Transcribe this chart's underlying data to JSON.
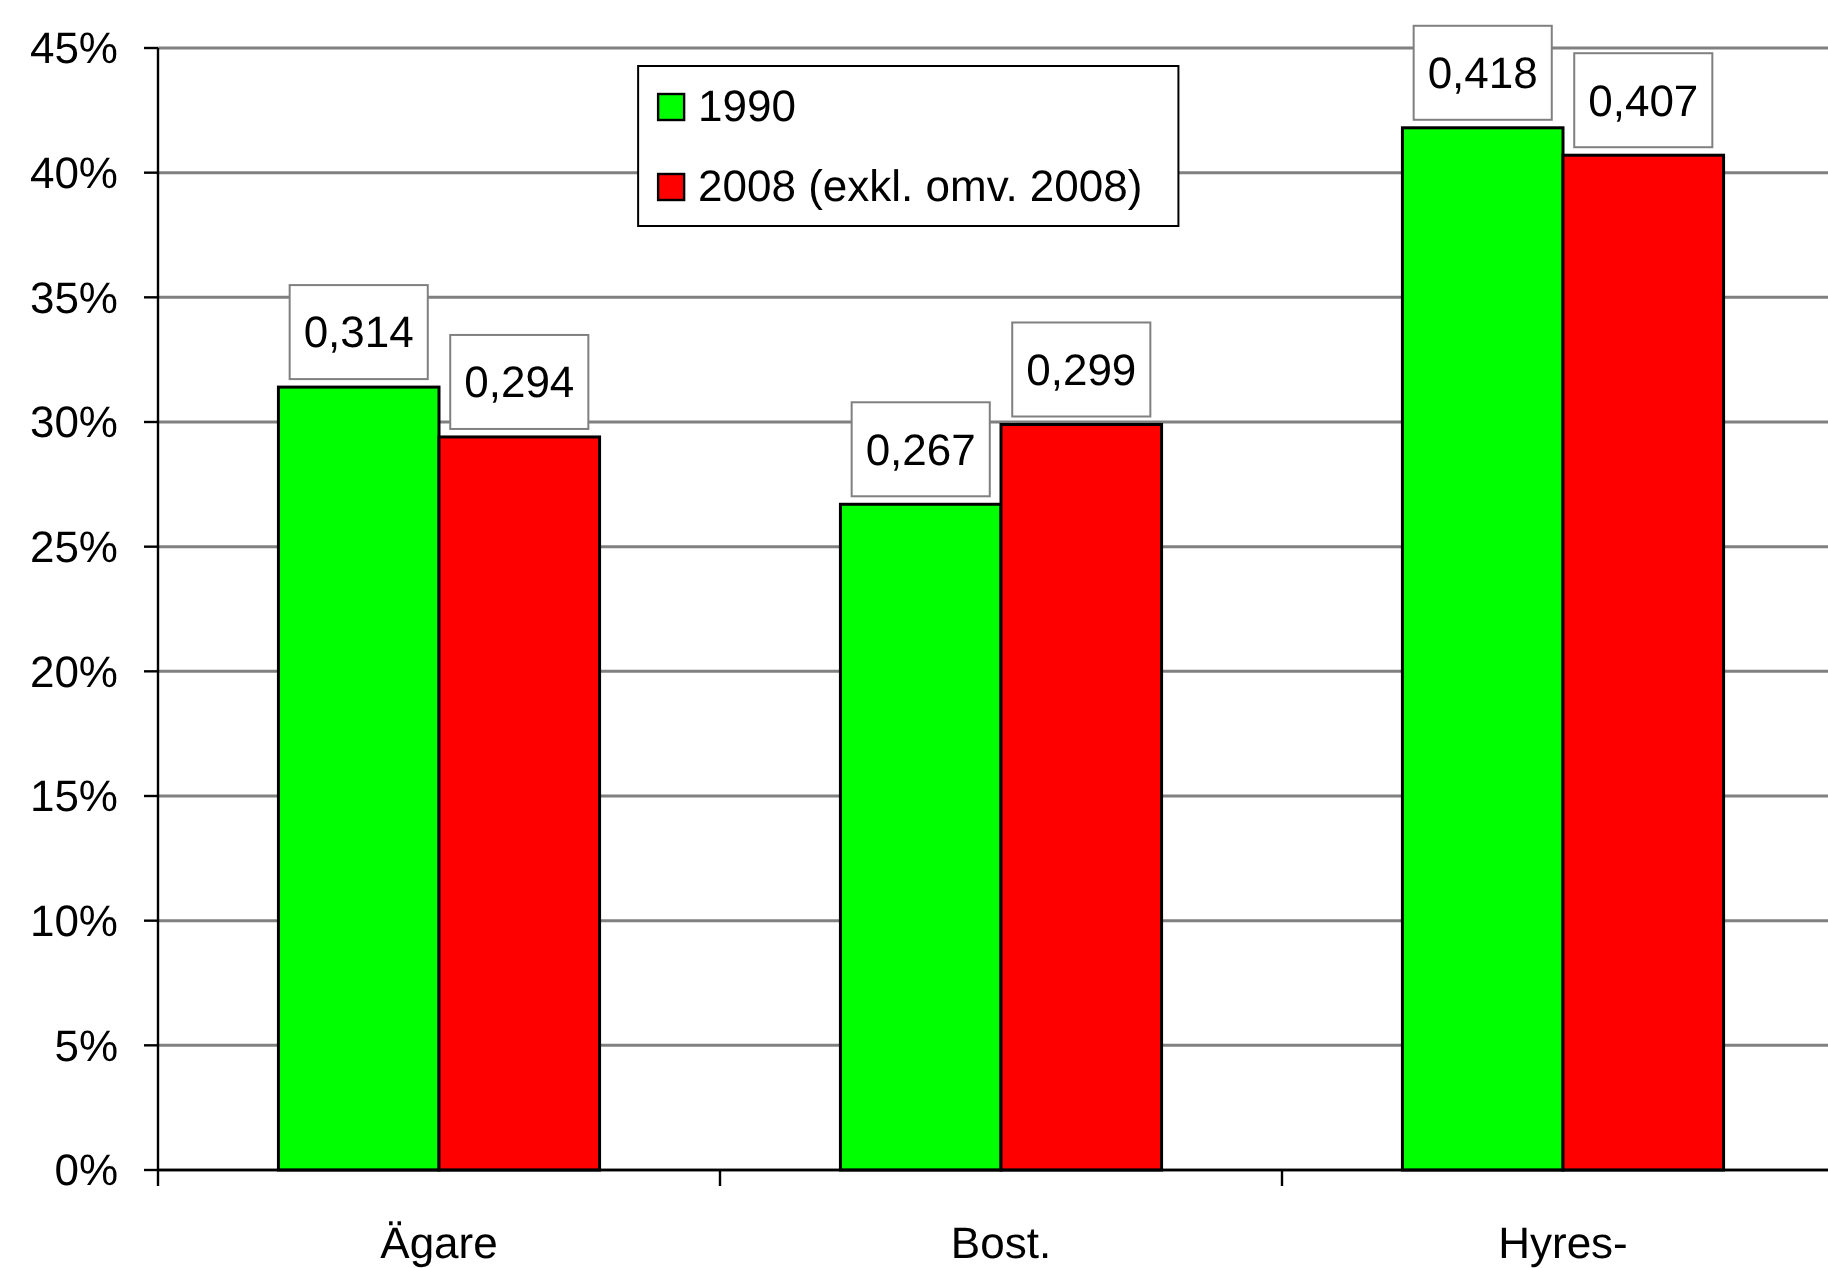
{
  "chart_data": {
    "type": "bar",
    "categories": [
      "Ägare",
      "Bost.",
      "Hyres-"
    ],
    "series": [
      {
        "name": "1990",
        "color": "#00ff00",
        "values": [
          0.314,
          0.267,
          0.418
        ],
        "value_labels": [
          "0,314",
          "0,267",
          "0,418"
        ]
      },
      {
        "name": "2008 (exkl. omv. 2008)",
        "color": "#ff0000",
        "values": [
          0.294,
          0.299,
          0.407
        ],
        "value_labels": [
          "0,294",
          "0,299",
          "0,407"
        ]
      }
    ],
    "ylim": [
      0,
      0.45
    ],
    "yticks": [
      {
        "value": 0,
        "label": "0%"
      },
      {
        "value": 0.05,
        "label": "5%"
      },
      {
        "value": 0.1,
        "label": "10%"
      },
      {
        "value": 0.15,
        "label": "15%"
      },
      {
        "value": 0.2,
        "label": "20%"
      },
      {
        "value": 0.25,
        "label": "25%"
      },
      {
        "value": 0.3,
        "label": "30%"
      },
      {
        "value": 0.35,
        "label": "35%"
      },
      {
        "value": 0.4,
        "label": "40%"
      },
      {
        "value": 0.45,
        "label": "45%"
      }
    ],
    "grid": "y",
    "legend": "top"
  }
}
